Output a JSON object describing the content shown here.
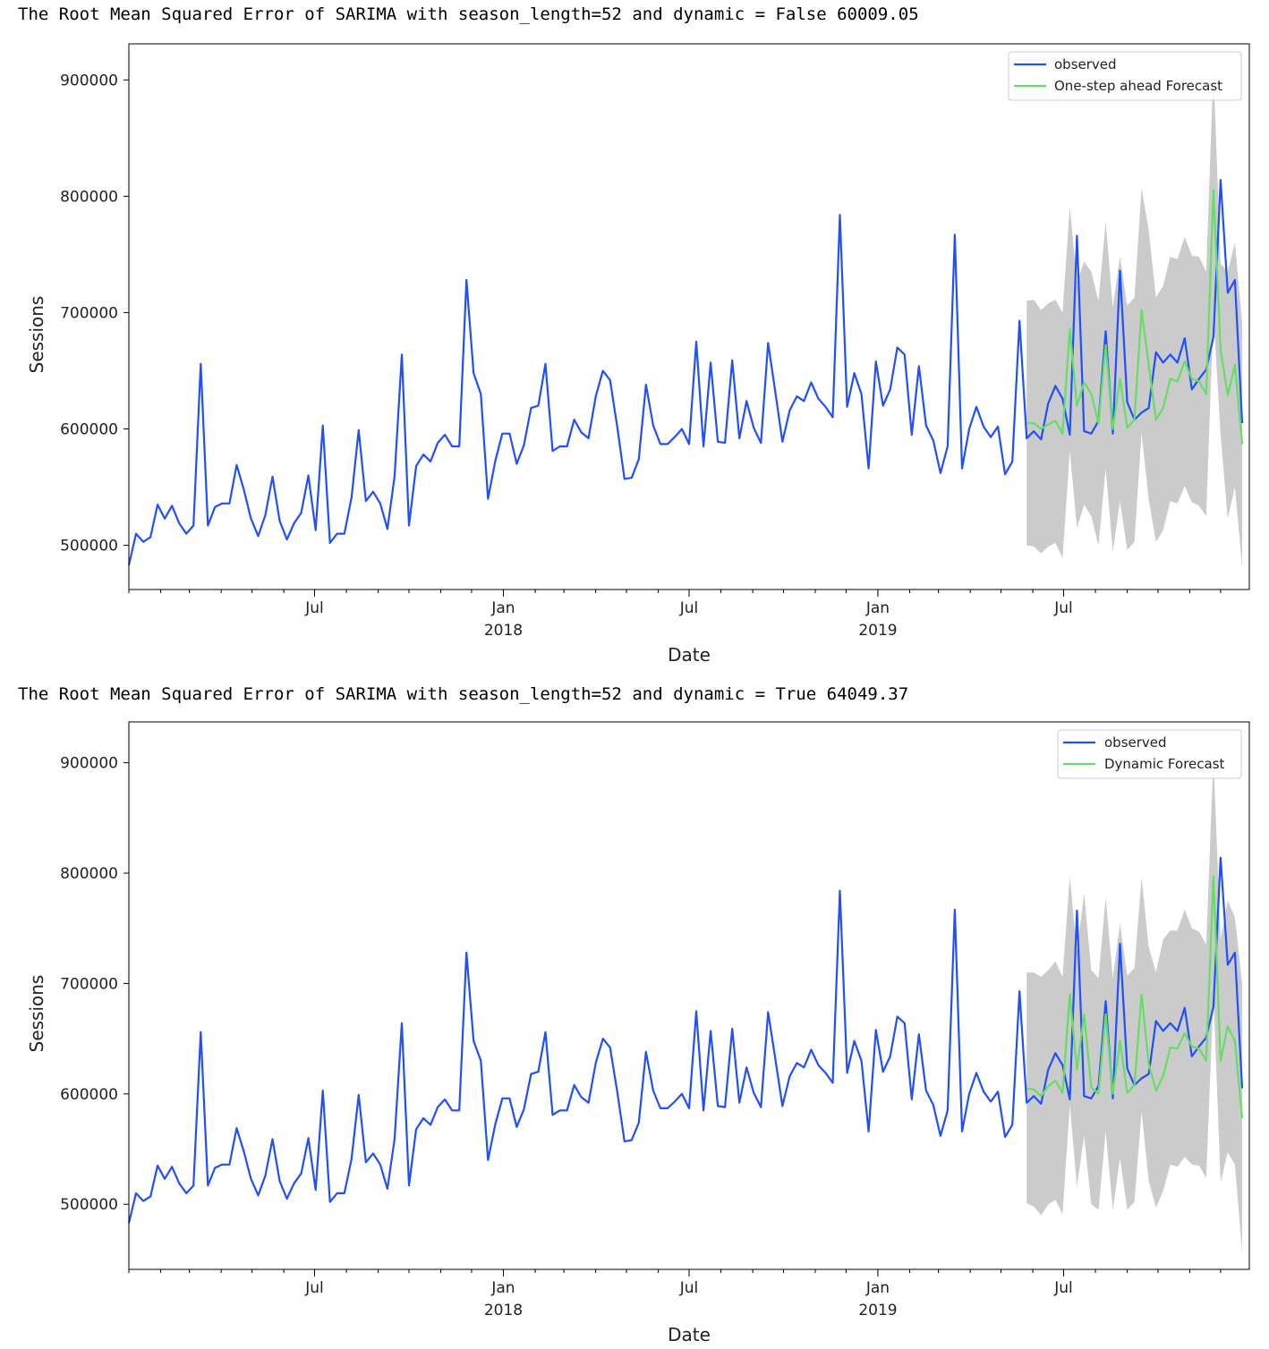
{
  "charts": [
    {
      "caption": "The Root Mean Squared Error of SARIMA with season_length=52 and dynamic = False 60009.05",
      "legend": [
        "observed",
        "One-step ahead Forecast"
      ]
    },
    {
      "caption": "The Root Mean Squared Error of SARIMA with season_length=52 and dynamic = True 64049.37",
      "legend": [
        "observed",
        "Dynamic Forecast"
      ]
    }
  ],
  "chart_data": [
    {
      "type": "line",
      "xlabel": "Date",
      "ylabel": "Sessions",
      "ylim": [
        462000,
        931000
      ],
      "xlim": [
        "2017-01-01",
        "2019-12-29"
      ],
      "grid": false,
      "legend_position": "top-right",
      "x_ticks": [
        {
          "date": "2017-07-01",
          "label": "Jul",
          "sublabel": ""
        },
        {
          "date": "2018-01-01",
          "label": "Jan",
          "sublabel": "2018"
        },
        {
          "date": "2018-07-01",
          "label": "Jul",
          "sublabel": ""
        },
        {
          "date": "2019-01-01",
          "label": "Jan",
          "sublabel": "2019"
        },
        {
          "date": "2019-07-01",
          "label": "Jul",
          "sublabel": ""
        }
      ],
      "y_ticks": [
        500000,
        600000,
        700000,
        800000,
        900000
      ],
      "colors": {
        "observed": "#1f4fff",
        "forecast": "#66dd66",
        "band": "#c8c8c8"
      },
      "series": [
        {
          "name": "observed",
          "start": "2017-01-01",
          "freq_days": 7,
          "values": [
            483000,
            510000,
            503000,
            507000,
            535000,
            523000,
            534000,
            519000,
            510000,
            517000,
            656000,
            517000,
            533000,
            536000,
            536000,
            569000,
            548000,
            523000,
            508000,
            526000,
            559000,
            521000,
            505000,
            519000,
            528000,
            560000,
            513000,
            603000,
            502000,
            510000,
            510000,
            541000,
            599000,
            538000,
            546000,
            536000,
            514000,
            559000,
            664000,
            517000,
            568000,
            578000,
            572000,
            588000,
            595000,
            585000,
            585000,
            728000,
            648000,
            630000,
            540000,
            572000,
            596000,
            596000,
            570000,
            586000,
            618000,
            620000,
            656000,
            581000,
            585000,
            585000,
            608000,
            597000,
            592000,
            628000,
            650000,
            642000,
            602000,
            557000,
            558000,
            574000,
            638000,
            603000,
            587000,
            587000,
            593000,
            600000,
            587000,
            675000,
            585000,
            657000,
            589000,
            588000,
            659000,
            592000,
            624000,
            601000,
            588000,
            674000,
            632000,
            589000,
            616000,
            628000,
            624000,
            640000,
            626000,
            619000,
            610000,
            784000,
            619000,
            648000,
            630000,
            566000,
            658000,
            620000,
            634000,
            670000,
            664000,
            595000,
            654000,
            603000,
            590000,
            562000,
            585000,
            767000,
            566000,
            600000,
            619000,
            602000,
            593000,
            602000,
            561000,
            572000,
            693000,
            592000,
            598000,
            591000,
            622000,
            637000,
            626000,
            595000,
            766000,
            598000,
            596000,
            607000,
            684000,
            596000,
            736000,
            623000,
            608000,
            614000,
            618000,
            666000,
            657000,
            664000,
            657000,
            678000,
            634000,
            643000,
            651000,
            679000,
            814000,
            717000,
            728000,
            605000
          ]
        },
        {
          "name": "One-step ahead Forecast",
          "start": "2019-05-26",
          "freq_days": 7,
          "values": [
            605000,
            605000,
            600000,
            604000,
            607000,
            596000,
            686000,
            620000,
            640000,
            630000,
            605000,
            672000,
            600000,
            643000,
            601000,
            608000,
            702000,
            655000,
            608000,
            618000,
            643000,
            641000,
            658000,
            643000,
            641000,
            630000,
            805000,
            668000,
            629000,
            655000,
            587000
          ],
          "band_upper": [
            710000,
            711000,
            702000,
            708000,
            711000,
            700000,
            791000,
            726000,
            744000,
            735000,
            710000,
            778000,
            705000,
            748000,
            706000,
            713000,
            807000,
            771000,
            713000,
            723000,
            748000,
            746000,
            765000,
            749000,
            748000,
            735000,
            911000,
            742000,
            735000,
            760000,
            692000
          ],
          "band_lower": [
            500000,
            499000,
            493000,
            499000,
            502000,
            489000,
            581000,
            515000,
            535000,
            525000,
            500000,
            566000,
            495000,
            538000,
            496000,
            503000,
            597000,
            539000,
            503000,
            513000,
            538000,
            536000,
            551000,
            537000,
            534000,
            525000,
            699000,
            595000,
            523000,
            550000,
            482000
          ]
        }
      ]
    },
    {
      "type": "line",
      "xlabel": "Date",
      "ylabel": "Sessions",
      "ylim": [
        441000,
        937000
      ],
      "xlim": [
        "2017-01-01",
        "2019-12-29"
      ],
      "grid": false,
      "legend_position": "top-right",
      "x_ticks": [
        {
          "date": "2017-07-01",
          "label": "Jul",
          "sublabel": ""
        },
        {
          "date": "2018-01-01",
          "label": "Jan",
          "sublabel": "2018"
        },
        {
          "date": "2018-07-01",
          "label": "Jul",
          "sublabel": ""
        },
        {
          "date": "2019-01-01",
          "label": "Jan",
          "sublabel": "2019"
        },
        {
          "date": "2019-07-01",
          "label": "Jul",
          "sublabel": ""
        }
      ],
      "y_ticks": [
        500000,
        600000,
        700000,
        800000,
        900000
      ],
      "colors": {
        "observed": "#1f4fff",
        "forecast": "#66dd66",
        "band": "#c8c8c8"
      },
      "series": [
        {
          "name": "observed",
          "start": "2017-01-01",
          "freq_days": 7,
          "values": [
            483000,
            510000,
            503000,
            507000,
            535000,
            523000,
            534000,
            519000,
            510000,
            517000,
            656000,
            517000,
            533000,
            536000,
            536000,
            569000,
            548000,
            523000,
            508000,
            526000,
            559000,
            521000,
            505000,
            519000,
            528000,
            560000,
            513000,
            603000,
            502000,
            510000,
            510000,
            541000,
            599000,
            538000,
            546000,
            536000,
            514000,
            559000,
            664000,
            517000,
            568000,
            578000,
            572000,
            588000,
            595000,
            585000,
            585000,
            728000,
            648000,
            630000,
            540000,
            572000,
            596000,
            596000,
            570000,
            586000,
            618000,
            620000,
            656000,
            581000,
            585000,
            585000,
            608000,
            597000,
            592000,
            628000,
            650000,
            642000,
            602000,
            557000,
            558000,
            574000,
            638000,
            603000,
            587000,
            587000,
            593000,
            600000,
            587000,
            675000,
            585000,
            657000,
            589000,
            588000,
            659000,
            592000,
            624000,
            601000,
            588000,
            674000,
            632000,
            589000,
            616000,
            628000,
            624000,
            640000,
            626000,
            619000,
            610000,
            784000,
            619000,
            648000,
            630000,
            566000,
            658000,
            620000,
            634000,
            670000,
            664000,
            595000,
            654000,
            603000,
            590000,
            562000,
            585000,
            767000,
            566000,
            600000,
            619000,
            602000,
            593000,
            602000,
            561000,
            572000,
            693000,
            592000,
            598000,
            591000,
            622000,
            637000,
            626000,
            595000,
            766000,
            598000,
            596000,
            607000,
            684000,
            596000,
            736000,
            623000,
            608000,
            614000,
            618000,
            666000,
            657000,
            664000,
            657000,
            678000,
            634000,
            643000,
            651000,
            679000,
            814000,
            717000,
            728000,
            605000
          ]
        },
        {
          "name": "Dynamic Forecast",
          "start": "2019-05-26",
          "freq_days": 7,
          "values": [
            605000,
            604000,
            598000,
            607000,
            612000,
            601000,
            690000,
            622000,
            672000,
            606000,
            600000,
            672000,
            600000,
            648000,
            601000,
            608000,
            690000,
            627000,
            603000,
            616000,
            642000,
            641000,
            655000,
            643000,
            641000,
            630000,
            797000,
            630000,
            661000,
            648000,
            578000
          ],
          "band_upper": [
            710000,
            710000,
            706000,
            712000,
            720000,
            706000,
            797000,
            728000,
            782000,
            712000,
            705000,
            778000,
            705000,
            754000,
            707000,
            714000,
            796000,
            733000,
            710000,
            740000,
            748000,
            748000,
            767000,
            750000,
            747000,
            735000,
            905000,
            740000,
            775000,
            760000,
            700000
          ],
          "band_lower": [
            501000,
            498000,
            490000,
            500000,
            504000,
            491000,
            590000,
            516000,
            562000,
            500000,
            495000,
            566000,
            495000,
            542000,
            495000,
            502000,
            584000,
            521000,
            497000,
            512000,
            536000,
            534000,
            543000,
            536000,
            535000,
            524000,
            690000,
            520000,
            547000,
            536000,
            456000
          ]
        }
      ]
    }
  ]
}
